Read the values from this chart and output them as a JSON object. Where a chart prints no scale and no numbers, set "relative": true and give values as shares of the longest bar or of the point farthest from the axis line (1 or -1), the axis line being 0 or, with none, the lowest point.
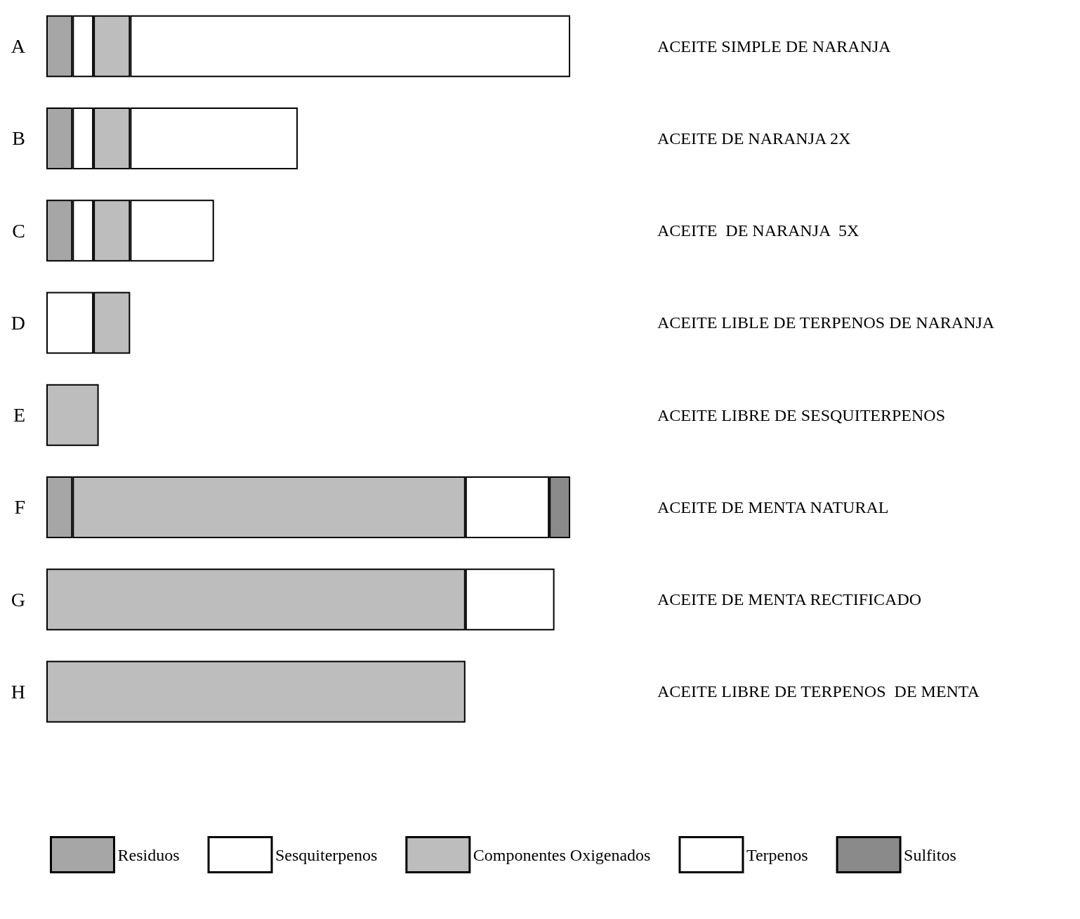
{
  "chart_data": {
    "type": "bar",
    "orientation": "horizontal",
    "stacked": true,
    "relative": true,
    "legend": "bottom",
    "categories": [
      "A",
      "B",
      "C",
      "D",
      "E",
      "F",
      "G",
      "H"
    ],
    "series": [
      {
        "name": "Residuos",
        "color": "#a6a6a6",
        "values": [
          0.05,
          0.05,
          0.05,
          null,
          null,
          0.05,
          null,
          null
        ]
      },
      {
        "name": "Sesquiterpenos",
        "color": "#ffffff",
        "values": [
          0.04,
          0.04,
          0.04,
          0.09,
          null,
          null,
          null,
          null
        ]
      },
      {
        "name": "Componentes Oxigenados",
        "color": "#bdbdbd",
        "values": [
          0.07,
          0.07,
          0.07,
          0.07,
          0.1,
          0.75,
          0.8,
          0.8
        ]
      },
      {
        "name": "Terpenos",
        "color": "#ffffff",
        "values": [
          0.84,
          0.32,
          0.16,
          null,
          null,
          null,
          null,
          null
        ]
      },
      {
        "color": "#ffffff",
        "values": [
          null,
          null,
          null,
          null,
          null,
          0.16,
          0.17,
          null
        ]
      },
      {
        "name": "Sulfitos",
        "color": "#8a8a8a",
        "values": [
          null,
          null,
          null,
          null,
          null,
          0.04,
          null,
          null
        ]
      }
    ],
    "annotations": [
      "ACEITE SIMPLE DE NARANJA",
      "ACEITE DE NARANJA 2X",
      "ACEITE  DE NARANJA  5X",
      "ACEITE LIBLE DE TERPENOS DE NARANJA",
      "ACEITE LIBRE DE SESQUITERPENOS",
      "ACEITE DE MENTA NATURAL",
      "ACEITE DE MENTA RECTIFICADO",
      "ACEITE LIBRE DE TERPENOS  DE MENTA"
    ]
  }
}
